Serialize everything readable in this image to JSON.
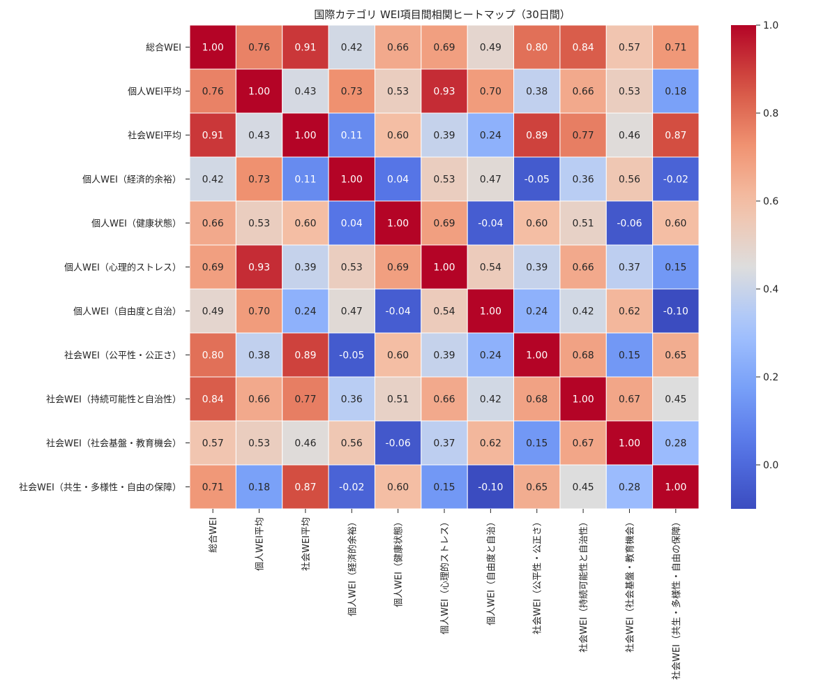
{
  "chart_data": {
    "type": "heatmap",
    "title": "国際カテゴリ WEI項目間相関ヒートマップ（30日間）",
    "labels": [
      "総合WEI",
      "個人WEI平均",
      "社会WEI平均",
      "個人WEI（経済的余裕）",
      "個人WEI（健康状態）",
      "個人WEI（心理的ストレス）",
      "個人WEI（自由度と自治）",
      "社会WEI（公平性・公正さ）",
      "社会WEI（持続可能性と自治性）",
      "社会WEI（社会基盤・教育機会）",
      "社会WEI（共生・多様性・自由の保障）"
    ],
    "matrix": [
      [
        1.0,
        0.76,
        0.91,
        0.42,
        0.66,
        0.69,
        0.49,
        0.8,
        0.84,
        0.57,
        0.71
      ],
      [
        0.76,
        1.0,
        0.43,
        0.73,
        0.53,
        0.93,
        0.7,
        0.38,
        0.66,
        0.53,
        0.18
      ],
      [
        0.91,
        0.43,
        1.0,
        0.11,
        0.6,
        0.39,
        0.24,
        0.89,
        0.77,
        0.46,
        0.87
      ],
      [
        0.42,
        0.73,
        0.11,
        1.0,
        0.04,
        0.53,
        0.47,
        -0.05,
        0.36,
        0.56,
        -0.02
      ],
      [
        0.66,
        0.53,
        0.6,
        0.04,
        1.0,
        0.69,
        -0.04,
        0.6,
        0.51,
        -0.06,
        0.6
      ],
      [
        0.69,
        0.93,
        0.39,
        0.53,
        0.69,
        1.0,
        0.54,
        0.39,
        0.66,
        0.37,
        0.15
      ],
      [
        0.49,
        0.7,
        0.24,
        0.47,
        -0.04,
        0.54,
        1.0,
        0.24,
        0.42,
        0.62,
        -0.1
      ],
      [
        0.8,
        0.38,
        0.89,
        -0.05,
        0.6,
        0.39,
        0.24,
        1.0,
        0.68,
        0.15,
        0.65
      ],
      [
        0.84,
        0.66,
        0.77,
        0.36,
        0.51,
        0.66,
        0.42,
        0.68,
        1.0,
        0.67,
        0.45
      ],
      [
        0.57,
        0.53,
        0.46,
        0.56,
        -0.06,
        0.37,
        0.62,
        0.15,
        0.67,
        1.0,
        0.28
      ],
      [
        0.71,
        0.18,
        0.87,
        -0.02,
        0.6,
        0.15,
        -0.1,
        0.65,
        0.45,
        0.28,
        1.0
      ]
    ],
    "colormap": "coolwarm",
    "vmin": -0.1,
    "vmax": 1.0,
    "colorbar_ticks": [
      0.0,
      0.2,
      0.4,
      0.6,
      0.8,
      1.0
    ],
    "colorbar_tick_labels": [
      "0.0",
      "0.2",
      "0.4",
      "0.6",
      "0.8",
      "1.0"
    ],
    "colors": {
      "low": "#3b4cc0",
      "mid": "#dddddd",
      "high": "#b40426"
    }
  }
}
